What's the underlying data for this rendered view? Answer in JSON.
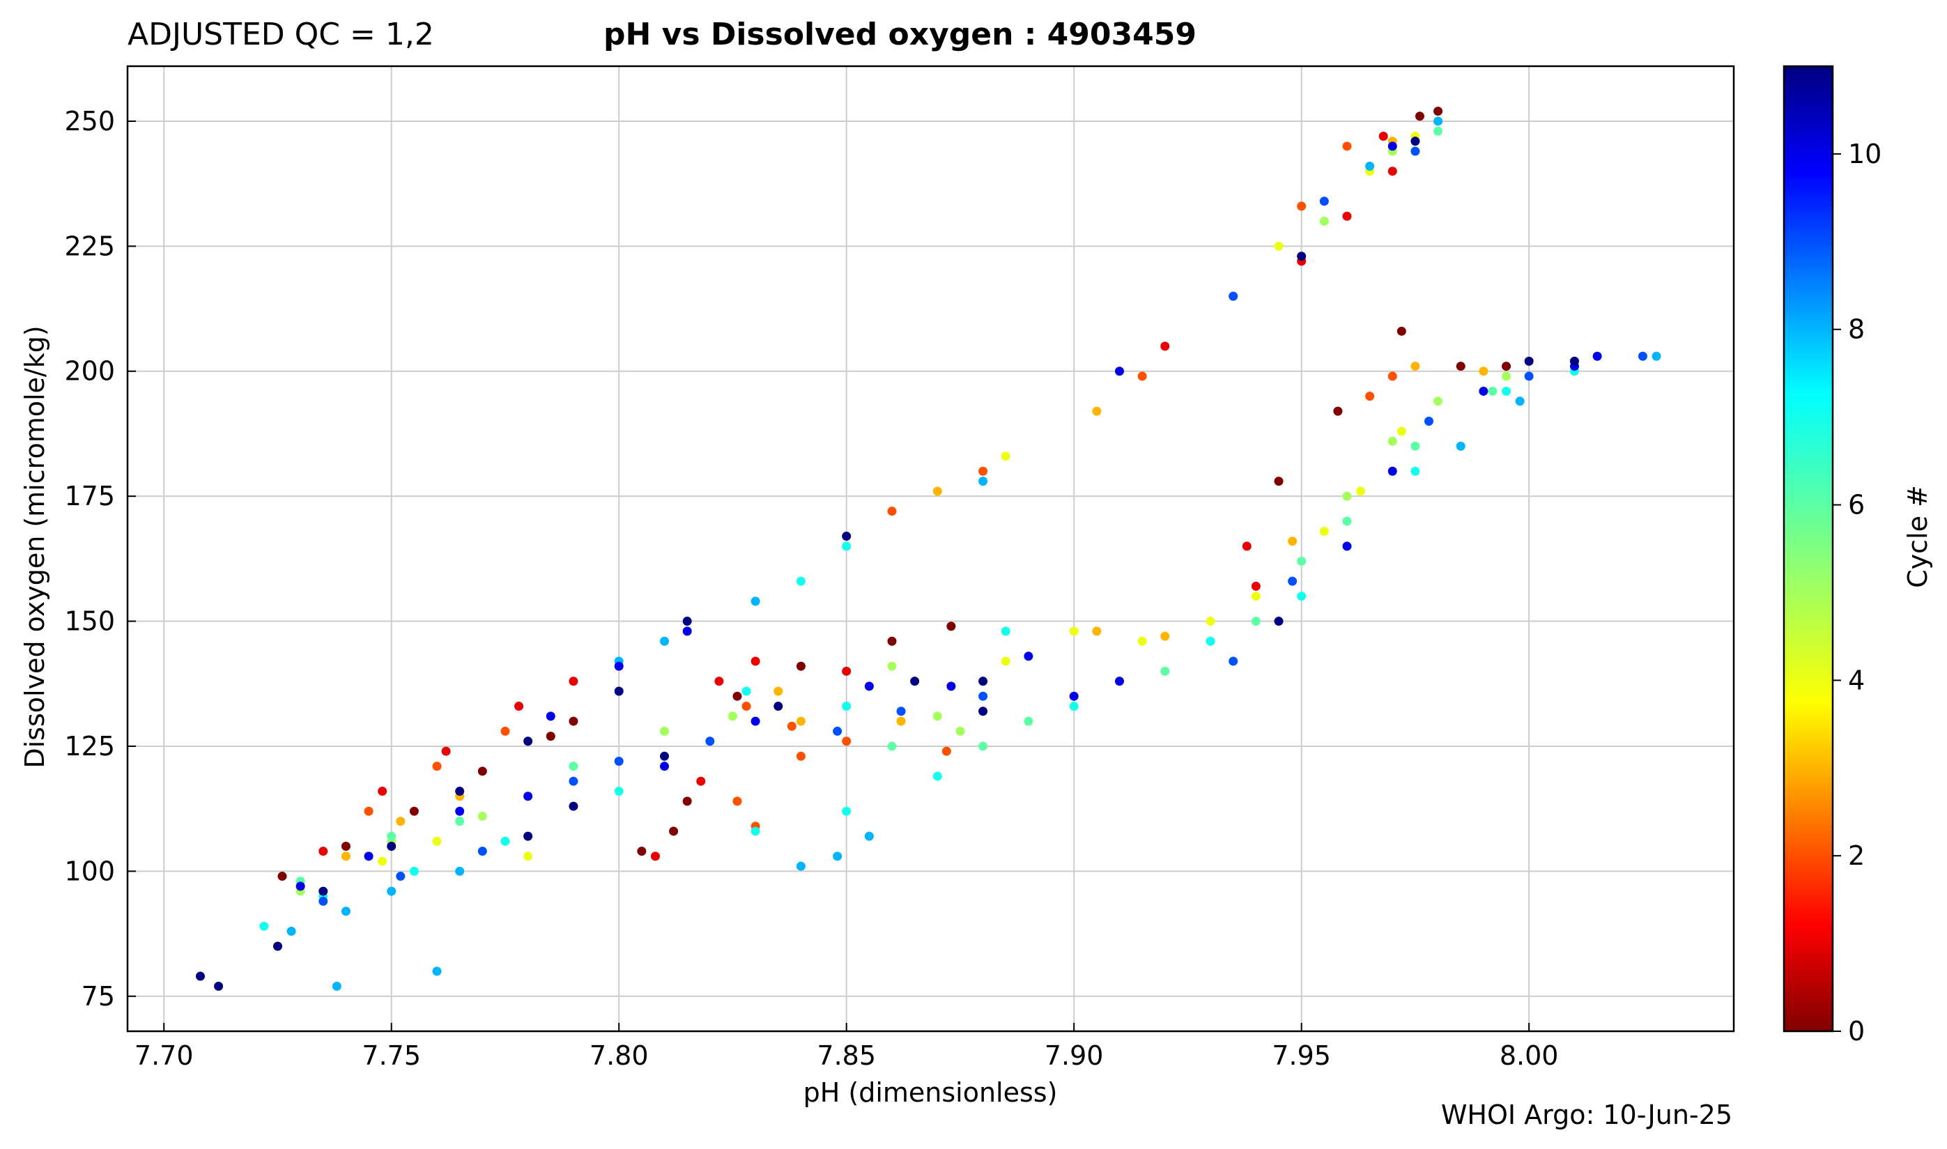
{
  "header": {
    "qc_label": "ADJUSTED QC = 1,2",
    "title": "pH vs Dissolved oxygen : 4903459"
  },
  "footer": {
    "credit": "WHOI Argo: 10-Jun-25"
  },
  "chart_data": {
    "type": "scatter",
    "title": "pH vs Dissolved oxygen : 4903459",
    "xlabel": "pH  (dimensionless)",
    "ylabel": "Dissolved oxygen  (micromole/kg)",
    "xlim": [
      7.692,
      8.045
    ],
    "ylim": [
      68,
      261
    ],
    "xticks": [
      "7.70",
      "7.75",
      "7.80",
      "7.85",
      "7.90",
      "7.95",
      "8.00"
    ],
    "yticks": [
      "75",
      "100",
      "125",
      "150",
      "175",
      "200",
      "225",
      "250"
    ],
    "grid": true,
    "colorbar": {
      "label": "Cycle #",
      "range": [
        0,
        11
      ],
      "ticks": [
        "0",
        "2",
        "4",
        "6",
        "8",
        "10"
      ],
      "colormap": "jet"
    },
    "series": [
      {
        "cycle": 0,
        "points": [
          [
            7.726,
            99
          ],
          [
            7.74,
            105
          ],
          [
            7.755,
            112
          ],
          [
            7.77,
            120
          ],
          [
            7.785,
            127
          ],
          [
            7.79,
            130
          ],
          [
            7.805,
            104
          ],
          [
            7.812,
            108
          ],
          [
            7.815,
            114
          ],
          [
            7.826,
            135
          ],
          [
            7.84,
            141
          ],
          [
            7.86,
            146
          ],
          [
            7.873,
            149
          ],
          [
            7.945,
            178
          ],
          [
            7.958,
            192
          ],
          [
            7.972,
            208
          ],
          [
            7.985,
            201
          ],
          [
            7.995,
            201
          ],
          [
            7.976,
            251
          ],
          [
            7.98,
            252
          ]
        ]
      },
      {
        "cycle": 1,
        "points": [
          [
            7.735,
            104
          ],
          [
            7.748,
            116
          ],
          [
            7.762,
            124
          ],
          [
            7.778,
            133
          ],
          [
            7.79,
            138
          ],
          [
            7.808,
            103
          ],
          [
            7.818,
            118
          ],
          [
            7.822,
            138
          ],
          [
            7.83,
            142
          ],
          [
            7.85,
            140
          ],
          [
            7.938,
            165
          ],
          [
            7.94,
            157
          ],
          [
            7.968,
            247
          ],
          [
            7.97,
            240
          ],
          [
            7.96,
            231
          ],
          [
            7.95,
            222
          ],
          [
            7.92,
            205
          ]
        ]
      },
      {
        "cycle": 2,
        "points": [
          [
            7.745,
            112
          ],
          [
            7.76,
            121
          ],
          [
            7.775,
            128
          ],
          [
            7.828,
            133
          ],
          [
            7.838,
            129
          ],
          [
            7.85,
            126
          ],
          [
            7.826,
            114
          ],
          [
            7.83,
            109
          ],
          [
            7.84,
            123
          ],
          [
            7.872,
            124
          ],
          [
            7.97,
            199
          ],
          [
            7.965,
            195
          ],
          [
            7.915,
            199
          ],
          [
            7.88,
            180
          ],
          [
            7.86,
            172
          ],
          [
            7.96,
            245
          ],
          [
            7.95,
            233
          ],
          [
            7.935,
            215
          ]
        ]
      },
      {
        "cycle": 3,
        "points": [
          [
            7.74,
            103
          ],
          [
            7.752,
            110
          ],
          [
            7.765,
            115
          ],
          [
            7.835,
            136
          ],
          [
            7.84,
            130
          ],
          [
            7.862,
            130
          ],
          [
            7.975,
            201
          ],
          [
            7.99,
            200
          ],
          [
            7.92,
            147
          ],
          [
            7.905,
            148
          ],
          [
            7.948,
            166
          ],
          [
            7.97,
            246
          ],
          [
            7.905,
            192
          ],
          [
            7.87,
            176
          ]
        ]
      },
      {
        "cycle": 4,
        "points": [
          [
            7.748,
            102
          ],
          [
            7.76,
            106
          ],
          [
            7.78,
            103
          ],
          [
            7.885,
            142
          ],
          [
            7.9,
            148
          ],
          [
            7.915,
            146
          ],
          [
            7.955,
            168
          ],
          [
            7.963,
            176
          ],
          [
            7.972,
            188
          ],
          [
            7.93,
            150
          ],
          [
            7.94,
            155
          ],
          [
            7.975,
            247
          ],
          [
            7.965,
            240
          ],
          [
            7.945,
            225
          ],
          [
            7.885,
            183
          ]
        ]
      },
      {
        "cycle": 5,
        "points": [
          [
            7.73,
            96
          ],
          [
            7.75,
            106
          ],
          [
            7.77,
            111
          ],
          [
            7.81,
            128
          ],
          [
            7.825,
            131
          ],
          [
            7.86,
            141
          ],
          [
            7.87,
            131
          ],
          [
            7.875,
            128
          ],
          [
            7.96,
            175
          ],
          [
            7.97,
            186
          ],
          [
            7.98,
            194
          ],
          [
            7.995,
            199
          ],
          [
            7.97,
            244
          ],
          [
            7.955,
            230
          ]
        ]
      },
      {
        "cycle": 6,
        "points": [
          [
            7.73,
            98
          ],
          [
            7.75,
            107
          ],
          [
            7.765,
            110
          ],
          [
            7.79,
            121
          ],
          [
            7.86,
            125
          ],
          [
            7.88,
            125
          ],
          [
            7.89,
            130
          ],
          [
            7.95,
            162
          ],
          [
            7.96,
            170
          ],
          [
            7.975,
            185
          ],
          [
            7.992,
            196
          ],
          [
            7.94,
            150
          ],
          [
            7.92,
            140
          ],
          [
            7.98,
            248
          ]
        ]
      },
      {
        "cycle": 7,
        "points": [
          [
            7.722,
            89
          ],
          [
            7.735,
            95
          ],
          [
            7.755,
            100
          ],
          [
            7.775,
            106
          ],
          [
            7.8,
            116
          ],
          [
            7.83,
            108
          ],
          [
            7.85,
            112
          ],
          [
            7.87,
            119
          ],
          [
            7.9,
            133
          ],
          [
            7.93,
            146
          ],
          [
            7.95,
            155
          ],
          [
            7.975,
            180
          ],
          [
            7.995,
            196
          ],
          [
            8.01,
            200
          ],
          [
            7.828,
            136
          ],
          [
            7.85,
            133
          ],
          [
            7.885,
            148
          ],
          [
            7.85,
            165
          ],
          [
            7.84,
            158
          ]
        ]
      },
      {
        "cycle": 8,
        "points": [
          [
            7.728,
            88
          ],
          [
            7.74,
            92
          ],
          [
            7.75,
            96
          ],
          [
            7.765,
            100
          ],
          [
            7.738,
            77
          ],
          [
            7.76,
            80
          ],
          [
            7.84,
            101
          ],
          [
            7.848,
            103
          ],
          [
            7.855,
            107
          ],
          [
            7.985,
            185
          ],
          [
            7.998,
            194
          ],
          [
            8.028,
            203
          ],
          [
            7.81,
            146
          ],
          [
            7.8,
            142
          ],
          [
            7.98,
            250
          ],
          [
            7.965,
            241
          ],
          [
            7.88,
            178
          ],
          [
            7.83,
            154
          ]
        ]
      },
      {
        "cycle": 9,
        "points": [
          [
            7.735,
            94
          ],
          [
            7.752,
            99
          ],
          [
            7.77,
            104
          ],
          [
            7.79,
            118
          ],
          [
            7.8,
            122
          ],
          [
            7.82,
            126
          ],
          [
            7.848,
            128
          ],
          [
            7.862,
            132
          ],
          [
            7.88,
            135
          ],
          [
            7.935,
            142
          ],
          [
            7.948,
            158
          ],
          [
            7.978,
            190
          ],
          [
            8.0,
            199
          ],
          [
            8.025,
            203
          ],
          [
            7.975,
            244
          ],
          [
            7.935,
            215
          ],
          [
            7.955,
            234
          ]
        ]
      },
      {
        "cycle": 10,
        "points": [
          [
            7.73,
            97
          ],
          [
            7.745,
            103
          ],
          [
            7.765,
            112
          ],
          [
            7.785,
            131
          ],
          [
            7.8,
            141
          ],
          [
            7.815,
            148
          ],
          [
            7.78,
            115
          ],
          [
            7.81,
            121
          ],
          [
            7.83,
            130
          ],
          [
            7.855,
            137
          ],
          [
            7.873,
            137
          ],
          [
            7.89,
            143
          ],
          [
            7.9,
            135
          ],
          [
            7.91,
            138
          ],
          [
            7.96,
            165
          ],
          [
            7.97,
            180
          ],
          [
            7.99,
            196
          ],
          [
            8.01,
            201
          ],
          [
            8.015,
            203
          ],
          [
            7.97,
            245
          ],
          [
            7.91,
            200
          ]
        ]
      },
      {
        "cycle": 11,
        "points": [
          [
            7.708,
            79
          ],
          [
            7.712,
            77
          ],
          [
            7.725,
            85
          ],
          [
            7.735,
            96
          ],
          [
            7.75,
            105
          ],
          [
            7.765,
            116
          ],
          [
            7.78,
            126
          ],
          [
            7.8,
            136
          ],
          [
            7.815,
            150
          ],
          [
            7.78,
            107
          ],
          [
            7.79,
            113
          ],
          [
            7.81,
            123
          ],
          [
            7.835,
            133
          ],
          [
            7.865,
            138
          ],
          [
            7.88,
            138
          ],
          [
            7.88,
            132
          ],
          [
            7.945,
            150
          ],
          [
            8.0,
            202
          ],
          [
            8.01,
            202
          ],
          [
            7.975,
            246
          ],
          [
            7.85,
            167
          ],
          [
            7.95,
            223
          ]
        ]
      }
    ]
  }
}
